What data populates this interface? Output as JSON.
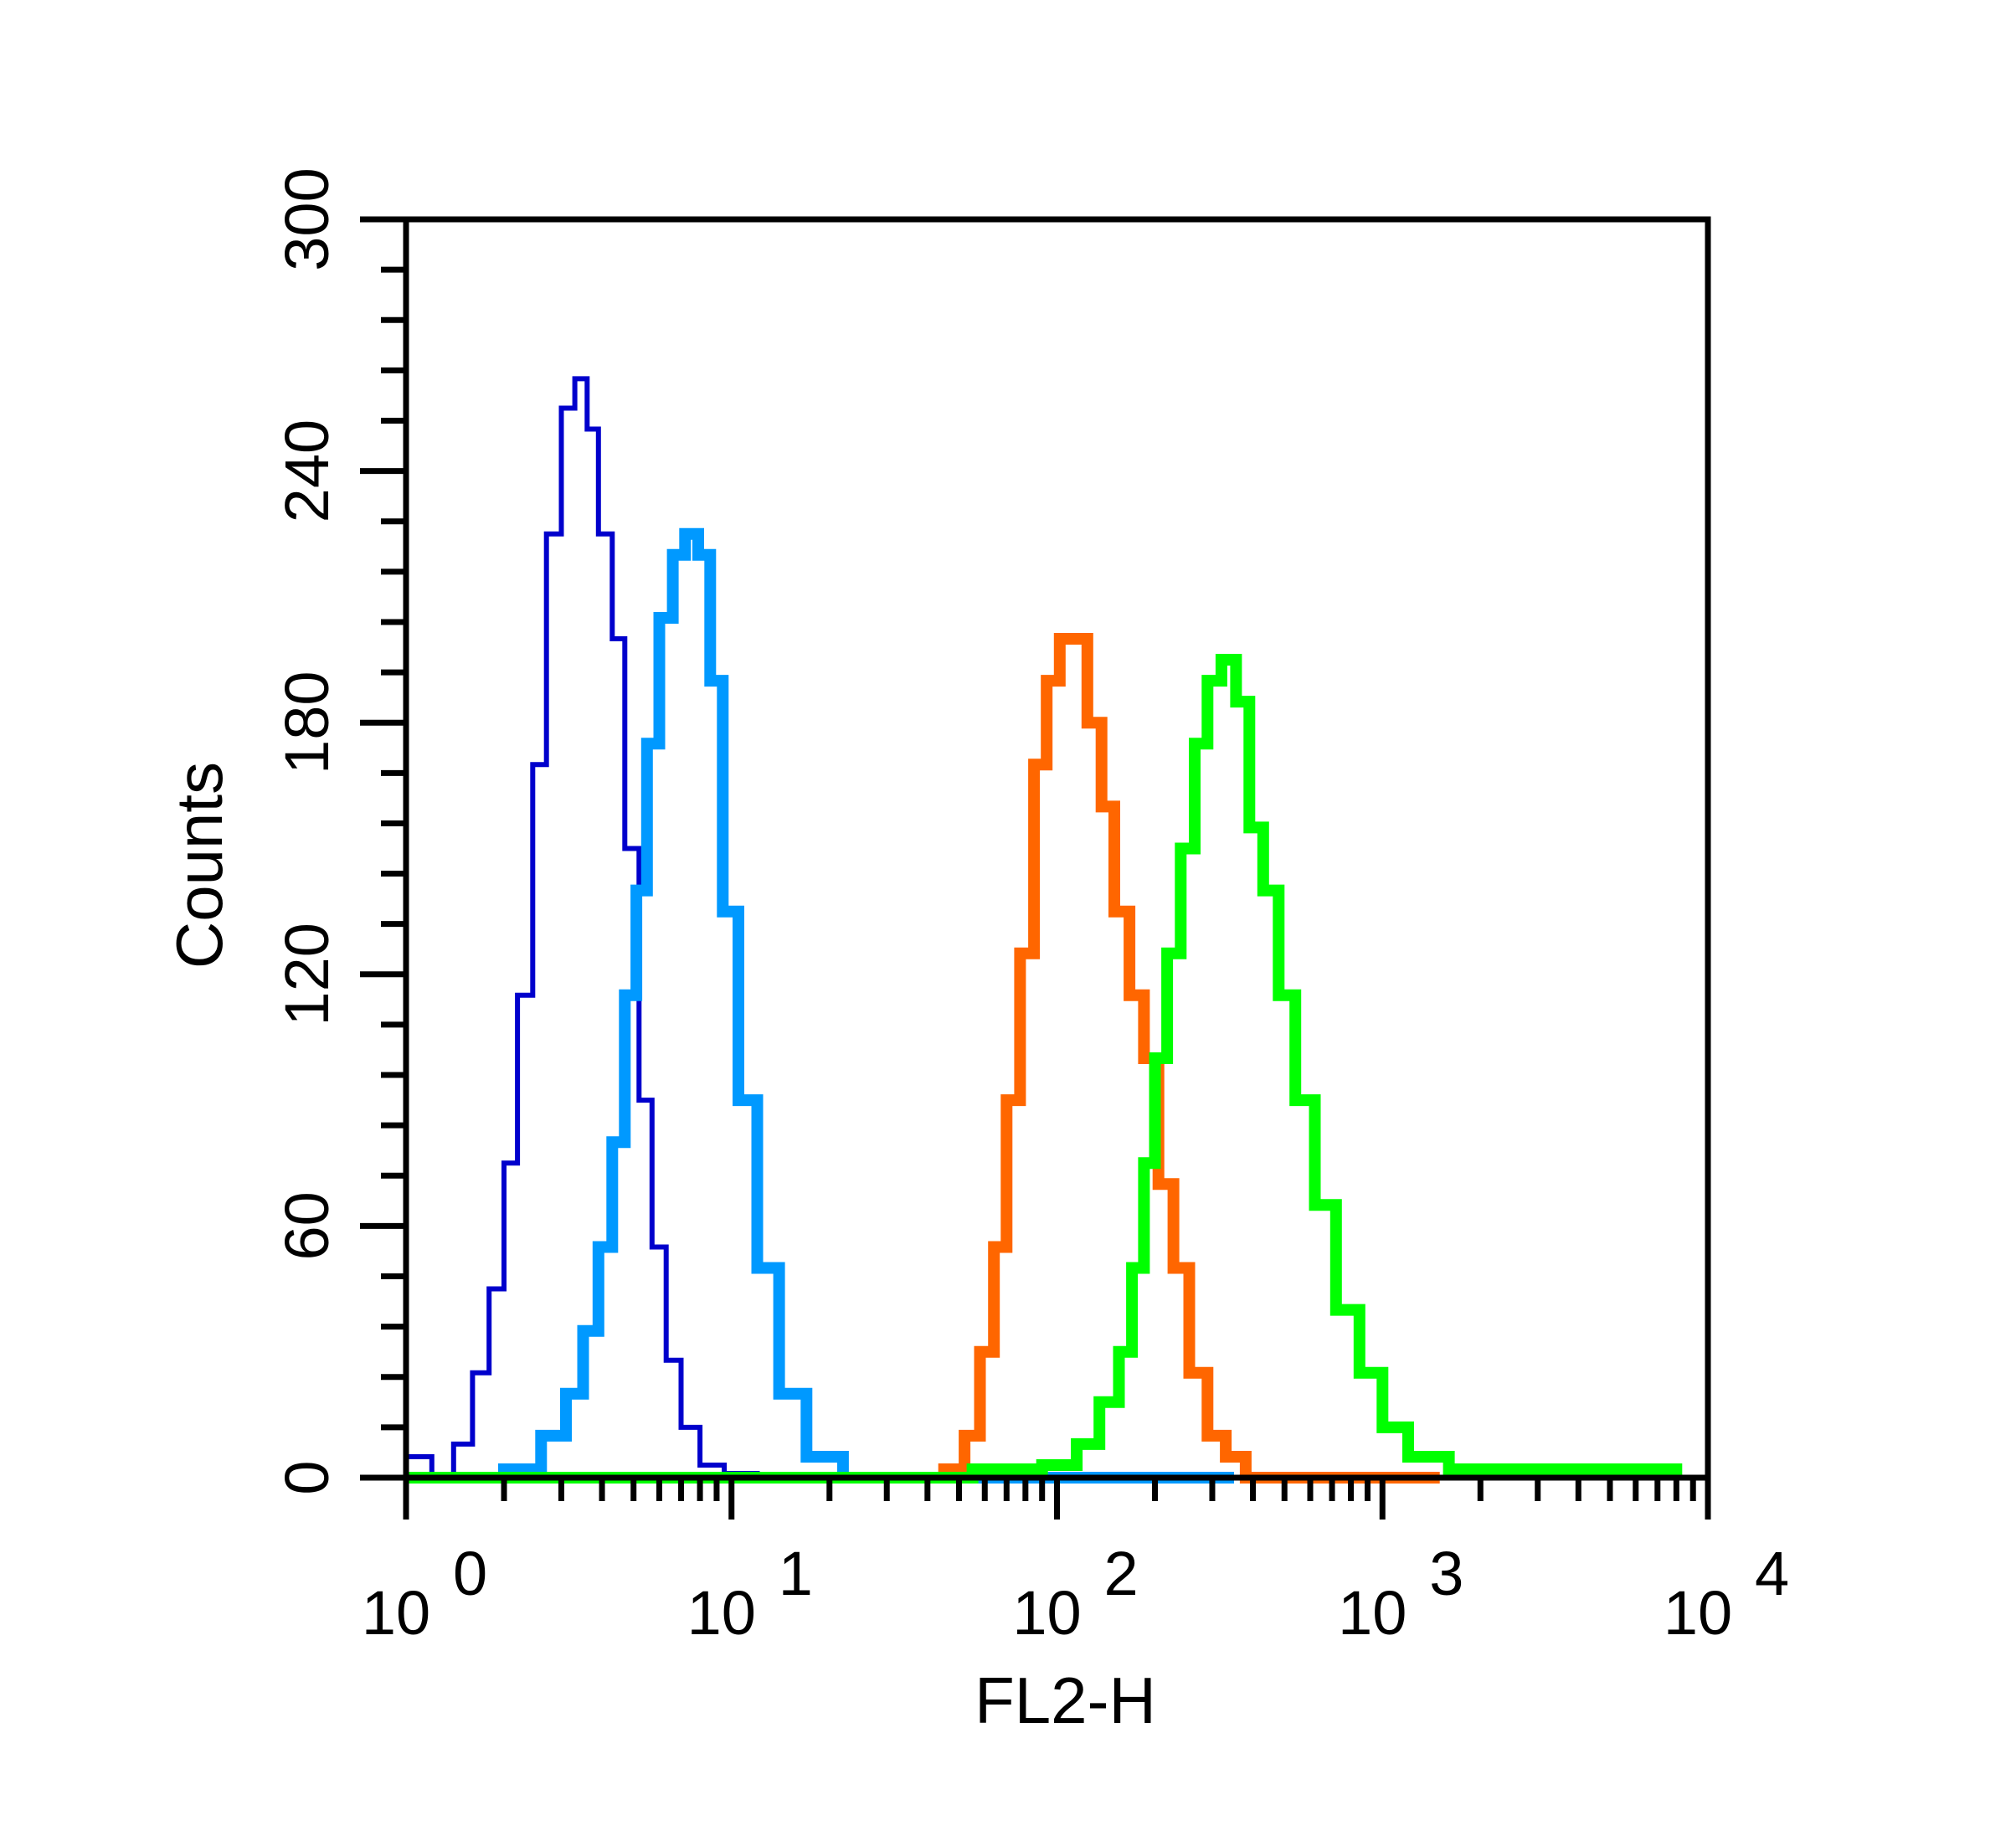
{
  "chart_data": {
    "type": "line",
    "title": "",
    "xlabel": "FL2-H",
    "ylabel": "Counts",
    "x_scale": "log10",
    "xlim": [
      1,
      10000
    ],
    "ylim": [
      0,
      300
    ],
    "grid": false,
    "legend": "none",
    "y_ticks": [
      {
        "value": 0,
        "label": "0"
      },
      {
        "value": 60,
        "label": "60"
      },
      {
        "value": 120,
        "label": "120"
      },
      {
        "value": 180,
        "label": "180"
      },
      {
        "value": 240,
        "label": "240"
      },
      {
        "value": 300,
        "label": "300"
      }
    ],
    "x_ticks": [
      {
        "value": 1,
        "base": "10",
        "exp": "0"
      },
      {
        "value": 10,
        "base": "10",
        "exp": "1"
      },
      {
        "value": 100,
        "base": "10",
        "exp": "2"
      },
      {
        "value": 1000,
        "base": "10",
        "exp": "3"
      },
      {
        "value": 10000,
        "base": "10",
        "exp": "4"
      }
    ],
    "series": [
      {
        "color": "#0000cc",
        "style": "thin-step",
        "x": [
          1.0,
          1.2,
          1.4,
          1.6,
          1.8,
          2.0,
          2.2,
          2.45,
          2.7,
          3.0,
          3.3,
          3.6,
          3.9,
          4.3,
          4.7,
          5.2,
          5.7,
          6.3,
          7.0,
          8.0,
          9.5,
          12.0
        ],
        "y": [
          5,
          0,
          8,
          25,
          45,
          75,
          115,
          170,
          225,
          255,
          262,
          250,
          225,
          200,
          150,
          90,
          55,
          28,
          12,
          3,
          1,
          0
        ]
      },
      {
        "color": "#0099ff",
        "style": "thick-step",
        "x": [
          1.5,
          2.0,
          2.6,
          3.1,
          3.5,
          3.9,
          4.3,
          4.7,
          5.1,
          5.5,
          6.0,
          6.6,
          7.2,
          7.9,
          8.6,
          9.4,
          10.5,
          12.0,
          14.0,
          17.0,
          22.0,
          100,
          160,
          350
        ],
        "y": [
          0,
          2,
          10,
          20,
          35,
          55,
          80,
          115,
          140,
          175,
          205,
          220,
          225,
          220,
          190,
          135,
          90,
          50,
          20,
          5,
          0,
          0,
          0,
          0
        ]
      },
      {
        "color": "#ff6600",
        "style": "thick-step",
        "x": [
          12,
          20,
          30,
          45,
          52,
          58,
          64,
          70,
          77,
          85,
          93,
          102,
          112,
          124,
          137,
          150,
          167,
          185,
          205,
          228,
          255,
          290,
          330,
          380,
          1500
        ],
        "y": [
          0,
          0,
          0,
          2,
          10,
          30,
          55,
          90,
          125,
          170,
          190,
          200,
          200,
          180,
          160,
          135,
          115,
          100,
          70,
          50,
          25,
          10,
          5,
          0,
          0
        ]
      },
      {
        "color": "#00ff00",
        "style": "thick-step",
        "x": [
          1,
          40,
          55,
          90,
          115,
          135,
          155,
          170,
          185,
          200,
          218,
          240,
          265,
          290,
          320,
          355,
          390,
          430,
          480,
          540,
          620,
          720,
          850,
          1000,
          1200,
          1600,
          8000
        ],
        "y": [
          0,
          0,
          2,
          3,
          8,
          18,
          30,
          50,
          75,
          100,
          125,
          150,
          175,
          190,
          195,
          185,
          155,
          140,
          115,
          90,
          65,
          40,
          25,
          12,
          5,
          2,
          0
        ]
      }
    ]
  }
}
